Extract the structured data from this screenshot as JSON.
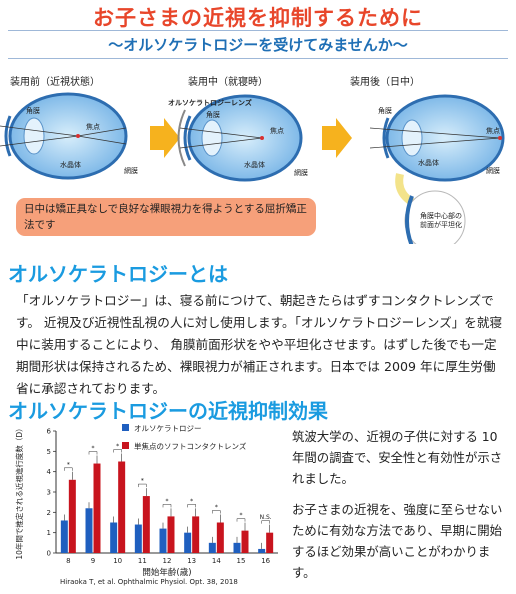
{
  "header": {
    "title": "お子さまの近視を抑制するために",
    "subtitle": "〜オルソケラトロジーを受けてみませんか〜"
  },
  "stages": [
    {
      "label": "装用前（近視状態）"
    },
    {
      "label": "装用中（就寝時）"
    },
    {
      "label": "装用後（日中）"
    }
  ],
  "diagram_labels": {
    "cornea": "角膜",
    "focus": "焦点",
    "lens": "水晶体",
    "retina": "網膜",
    "ortho_lens": "オルソケラトロジーレンズ",
    "cornea_center": "角膜中心部の前面が平坦化"
  },
  "info_box": "日中は矯正具なしで良好な裸眼視力を得ようとする屈折矯正法です",
  "section1": {
    "title": "オルソケラトロジーとは",
    "body": "「オルソケラトロジー」は、寝る前につけて、朝起きたらはずすコンタクトレンズです。 近視及び近視性乱視の人に対し使用します。「オルソケラトロジーレンズ」を就寝中に装用することにより、 角膜前面形状をやや平坦化させます。はずした後でも一定期間形状は保持されるため、裸眼視力が補正されます。日本では 2009 年に厚生労働省に承認されております。"
  },
  "section2": {
    "title": "オルソケラトロジーの近視抑制効果",
    "study": "筑波大学の、近視の子供に対する 10 年間の調査で、安全性と有効性が示されました。",
    "conclusion": "お子さまの近視を、強度に至らせないために有効な方法であり、早期に開始するほど効果が高いことがわかります。"
  },
  "citation": "Hiraoka T, et al. Ophthalmic Physiol. Opt. 38, 2018",
  "chart_data": {
    "type": "bar",
    "categories": [
      "8",
      "9",
      "10",
      "11",
      "12",
      "13",
      "14",
      "15",
      "16"
    ],
    "series": [
      {
        "name": "オルソケラトロジー",
        "color": "#1f5fbf",
        "values": [
          1.6,
          2.2,
          1.5,
          1.4,
          1.2,
          1.0,
          0.5,
          0.5,
          0.2
        ]
      },
      {
        "name": "単焦点のソフトコンタクトレンズ",
        "color": "#c8141e",
        "values": [
          3.6,
          4.4,
          4.5,
          2.8,
          1.8,
          1.8,
          1.5,
          1.1,
          1.0
        ]
      }
    ],
    "significance": [
      "*",
      "*",
      "*",
      "*",
      "*",
      "*",
      "*",
      "*",
      "N.S."
    ],
    "ylabel": "10年間で推定される近視進行度数（D）",
    "xlabel": "開始年齢(歳)",
    "yticks": [
      "0",
      "1",
      "2",
      "3",
      "4",
      "5",
      "6"
    ],
    "ylim": [
      0,
      6
    ],
    "grid": false,
    "legend": "top"
  }
}
